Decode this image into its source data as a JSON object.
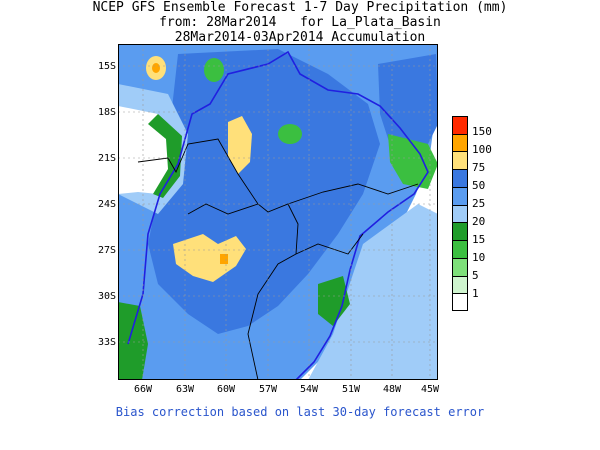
{
  "header": {
    "line1": "NCEP GFS Ensemble Forecast 1-7 Day Precipitation (mm)",
    "line2": "from: 28Mar2014   for La_Plata_Basin",
    "line3": "28Mar2014-03Apr2014 Accumulation"
  },
  "axes": {
    "lat_labels": [
      "15S",
      "18S",
      "21S",
      "24S",
      "27S",
      "30S",
      "33S"
    ],
    "lon_labels": [
      "66W",
      "63W",
      "60W",
      "57W",
      "54W",
      "51W",
      "48W",
      "45W"
    ]
  },
  "legend": {
    "levels": [
      "150",
      "100",
      "75",
      "50",
      "25",
      "20",
      "15",
      "10",
      "5",
      "1"
    ],
    "colors": [
      "#ff2a00",
      "#ffa500",
      "#ffe07a",
      "#3a78e0",
      "#5a9cf0",
      "#a0ccf8",
      "#1f9c2a",
      "#3bbf40",
      "#7ee07a",
      "#cff5cf",
      "#ffffff"
    ]
  },
  "footer": {
    "note": "Bias correction based on last 30-day forecast error"
  },
  "map_colors": {
    "basin_outline": "#2020e0",
    "borders": "#000000"
  }
}
